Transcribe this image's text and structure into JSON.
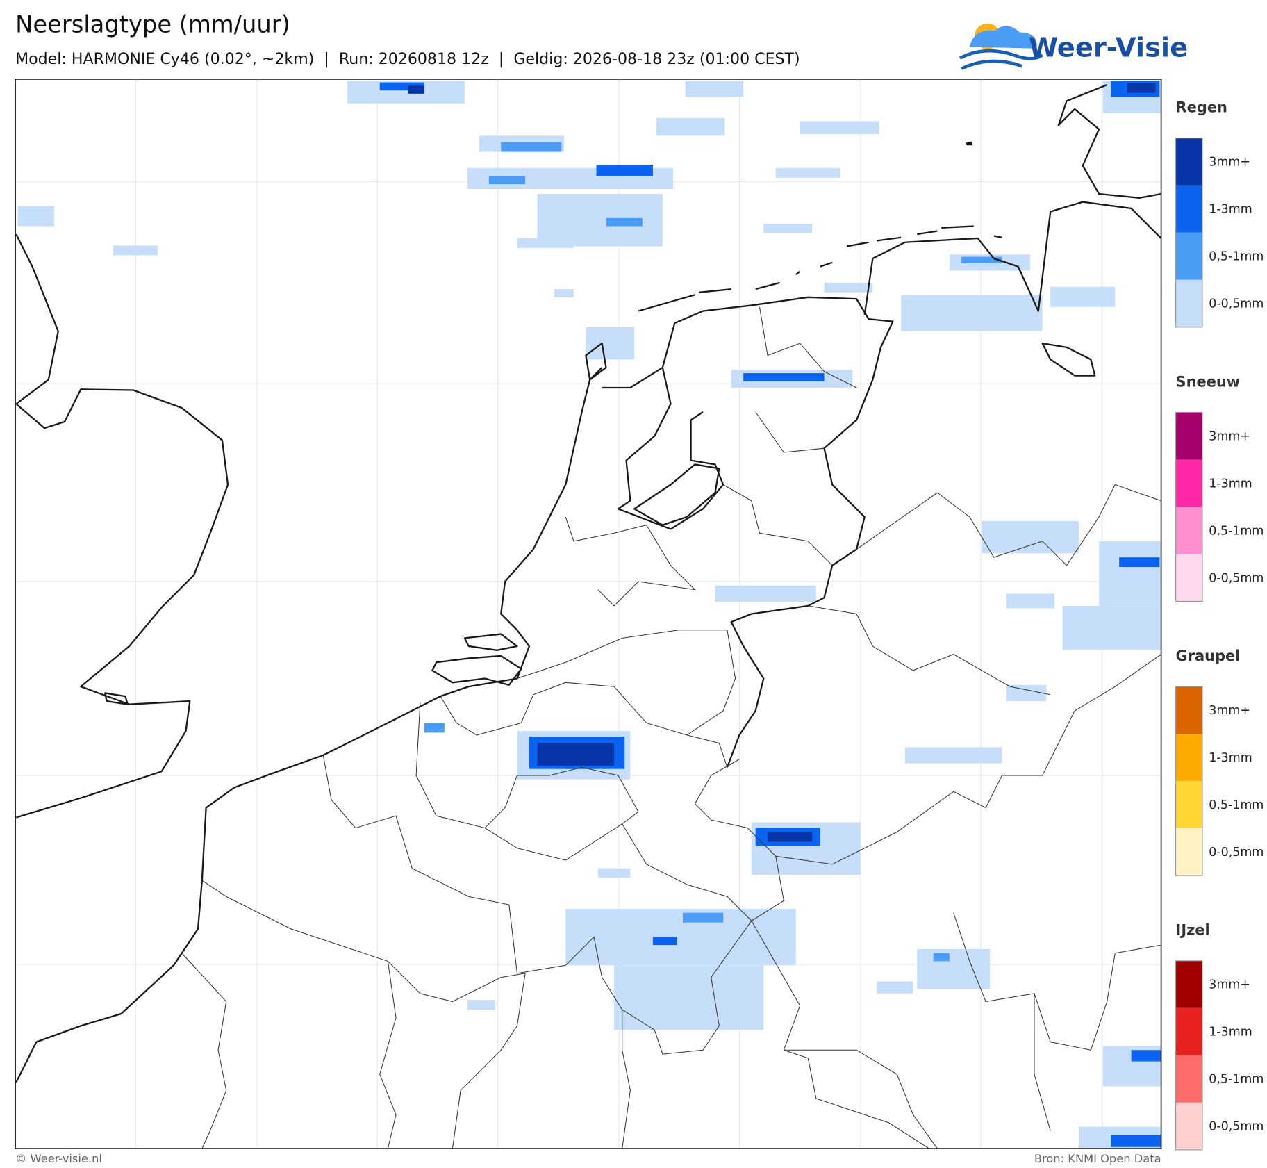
{
  "header": {
    "title": "Neerslagtype (mm/uur)",
    "subtitle": "Model: HARMONIE Cy46 (0.02°, ~2km)  |  Run: 20260818 12z  |  Geldig: 2026-08-18 23z (01:00 CEST)",
    "logo": "Weer-Visie"
  },
  "legend": [
    {
      "title": "Regen",
      "items": [
        {
          "label": "3mm+",
          "color": "#0a35a8"
        },
        {
          "label": "1-3mm",
          "color": "#0a64f0"
        },
        {
          "label": "0,5-1mm",
          "color": "#4a9cf5"
        },
        {
          "label": "0-0,5mm",
          "color": "#c7defa"
        }
      ]
    },
    {
      "title": "Sneeuw",
      "items": [
        {
          "label": "3mm+",
          "color": "#a8006b"
        },
        {
          "label": "1-3mm",
          "color": "#ff28a6"
        },
        {
          "label": "0,5-1mm",
          "color": "#ff8fcf"
        },
        {
          "label": "0-0,5mm",
          "color": "#ffd9ee"
        }
      ]
    },
    {
      "title": "Graupel",
      "items": [
        {
          "label": "3mm+",
          "color": "#db6600"
        },
        {
          "label": "1-3mm",
          "color": "#ffaa00"
        },
        {
          "label": "0,5-1mm",
          "color": "#ffd632"
        },
        {
          "label": "0-0,5mm",
          "color": "#fff3c4"
        }
      ]
    },
    {
      "title": "IJzel",
      "items": [
        {
          "label": "3mm+",
          "color": "#a00000"
        },
        {
          "label": "1-3mm",
          "color": "#e8201e"
        },
        {
          "label": "0,5-1mm",
          "color": "#ff6b6b"
        },
        {
          "label": "0-0,5mm",
          "color": "#ffd0d0"
        }
      ]
    }
  ],
  "footer": {
    "copyright": "© Weer-visie.nl",
    "source": "Bron: KNMI Open Data"
  }
}
